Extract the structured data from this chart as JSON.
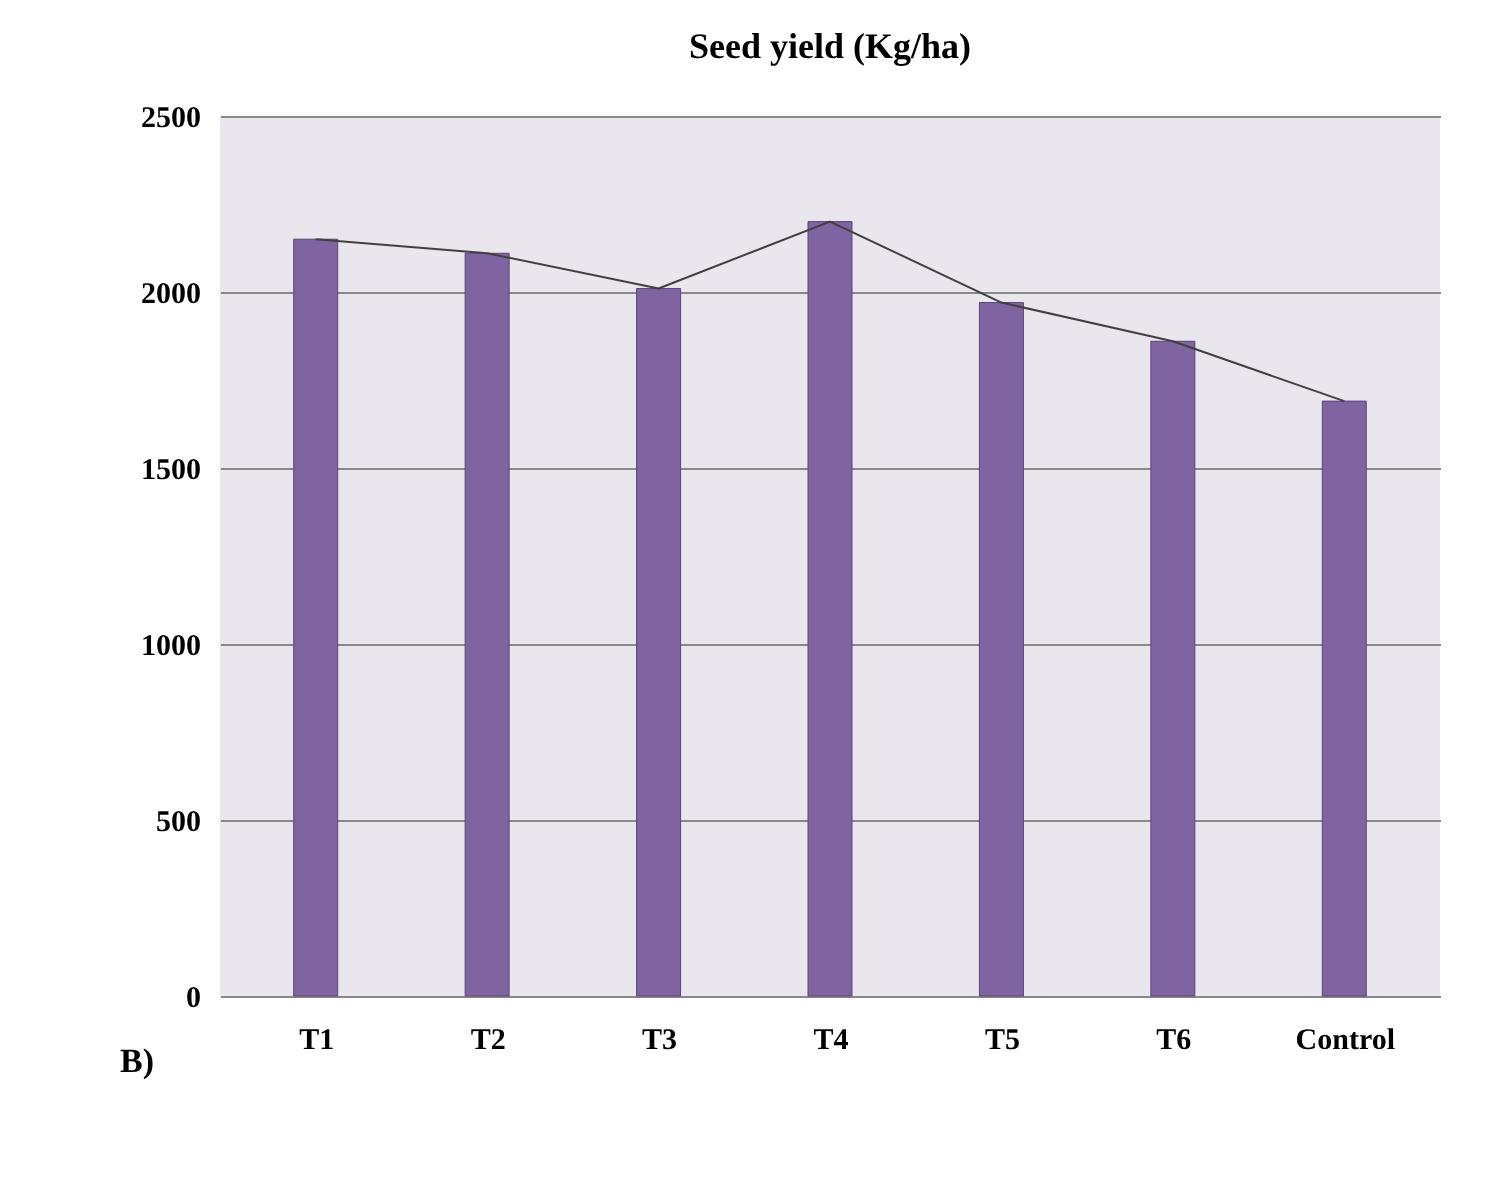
{
  "chart_data": {
    "type": "bar",
    "title": "Seed yield (Kg/ha)",
    "categories": [
      "T1",
      "T2",
      "T3",
      "T4",
      "T5",
      "T6",
      "Control"
    ],
    "series": [
      {
        "color": "#8064a2",
        "values": [
          2150,
          2110,
          2010,
          2200,
          1970,
          1860,
          1690
        ]
      },
      {
        "type": "line",
        "color": "#404040",
        "values": [
          2150,
          2110,
          2010,
          2200,
          1970,
          1860,
          1690
        ]
      }
    ],
    "ylim": [
      0,
      2500
    ],
    "yticks": [
      0,
      500,
      1000,
      1500,
      2000,
      2500
    ],
    "grid": "y",
    "legend": false,
    "marker": "none",
    "line_style": "solid",
    "annotations": [
      "B)"
    ]
  }
}
